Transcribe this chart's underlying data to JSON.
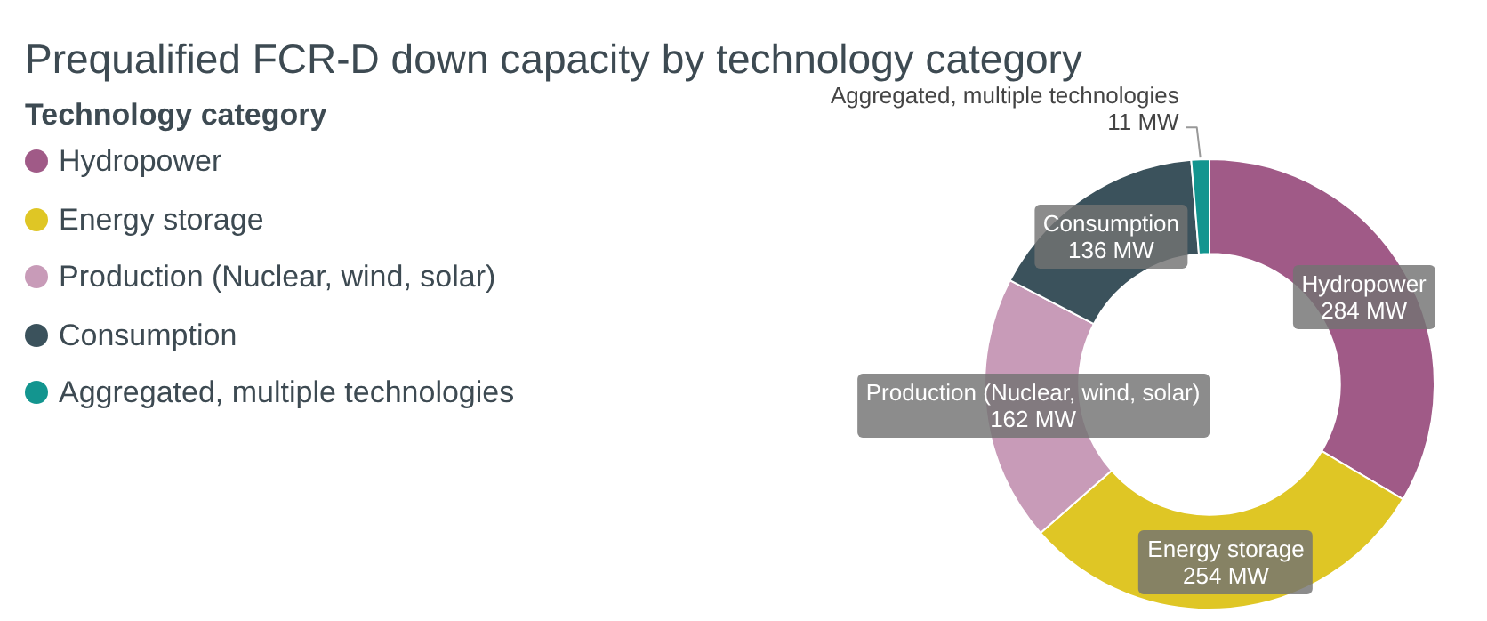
{
  "chart_data": {
    "type": "donut",
    "title": "Prequalified FCR-D down capacity by technology category",
    "legend_title": "Technology category",
    "legend": "top left",
    "categories": [
      "Hydropower",
      "Energy storage",
      "Production (Nuclear, wind, solar)",
      "Consumption",
      "Aggregated, multiple technologies"
    ],
    "values": [
      284,
      254,
      162,
      136,
      11
    ],
    "value_labels": [
      "284 MW",
      "254 MW",
      "162 MW",
      "136 MW",
      "11 MW"
    ],
    "colors": [
      "#a05a87",
      "#dfc625",
      "#c89bb8",
      "#3b525c",
      "#13958f"
    ]
  }
}
